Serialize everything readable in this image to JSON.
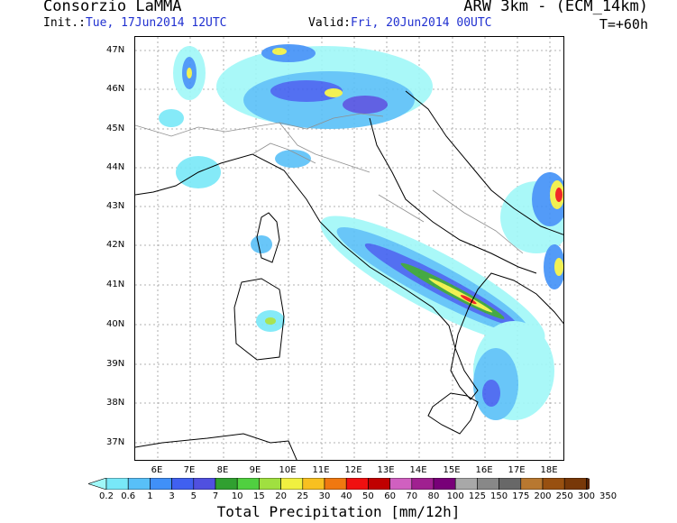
{
  "header": {
    "title": "Consorzio LaMMA",
    "model": "ARW 3km - (ECM_14km)",
    "init_label": "Init.:",
    "init_value": "Tue, 17Jun2014 12UTC",
    "valid_label": "Valid:",
    "valid_value": "Fri, 20Jun2014 00UTC",
    "forecast_step": "T=+60h"
  },
  "map": {
    "lat_labels": [
      "47N",
      "46N",
      "45N",
      "44N",
      "43N",
      "42N",
      "41N",
      "40N",
      "39N",
      "38N",
      "37N"
    ],
    "lon_labels": [
      "6E",
      "7E",
      "8E",
      "9E",
      "10E",
      "11E",
      "12E",
      "13E",
      "14E",
      "15E",
      "16E",
      "17E",
      "18E"
    ]
  },
  "colorbar": {
    "title": "Total Precipitation [mm/12h]",
    "labels": [
      "0.2",
      "0.6",
      "1",
      "3",
      "5",
      "7",
      "10",
      "15",
      "20",
      "25",
      "30",
      "40",
      "50",
      "60",
      "70",
      "80",
      "100",
      "125",
      "150",
      "175",
      "200",
      "250",
      "300",
      "350"
    ],
    "colors": [
      "#a0f8f8",
      "#78e8f8",
      "#58c0f8",
      "#4090f8",
      "#4060f0",
      "#5050e0",
      "#30a030",
      "#50d040",
      "#a0e040",
      "#f0f040",
      "#f8c020",
      "#f07810",
      "#f01010",
      "#c00000",
      "#d060c0",
      "#a02090",
      "#780078",
      "#a8a8a8",
      "#888888",
      "#686868",
      "#b87830",
      "#985010",
      "#783808",
      "#502000"
    ]
  }
}
